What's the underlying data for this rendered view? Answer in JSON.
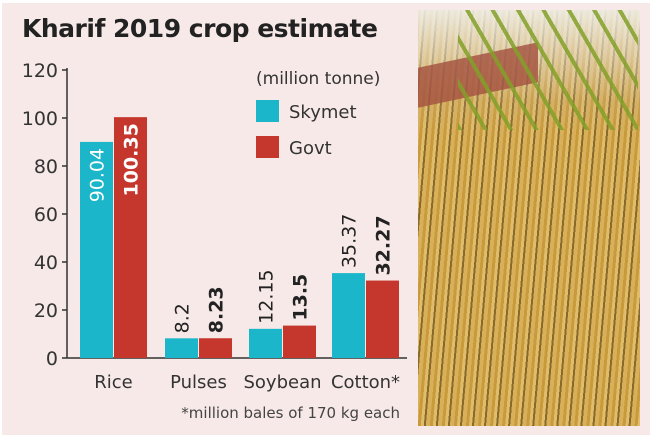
{
  "chart_data": {
    "type": "bar",
    "title": "Kharif 2019 crop estimate",
    "unit_note": "(million tonne)",
    "footnote": "*million bales of 170 kg each",
    "categories": [
      "Rice",
      "Pulses",
      "Soybean",
      "Cotton*"
    ],
    "series": [
      {
        "name": "Skymet",
        "color": "#1cb6ca",
        "values": [
          90.04,
          8.2,
          12.15,
          35.37
        ],
        "labels": [
          "90.04",
          "8.2",
          "12.15",
          "35.37"
        ]
      },
      {
        "name": "Govt",
        "color": "#c5362c",
        "values": [
          100.35,
          8.23,
          13.5,
          32.27
        ],
        "labels": [
          "100.35",
          "8.23",
          "13.5",
          "32.27"
        ]
      }
    ],
    "ylim": [
      0,
      120
    ],
    "yticks": [
      0,
      20,
      40,
      60,
      80,
      100,
      120
    ],
    "xlabel": "",
    "ylabel": "",
    "grid": false,
    "legend": "top-right"
  }
}
